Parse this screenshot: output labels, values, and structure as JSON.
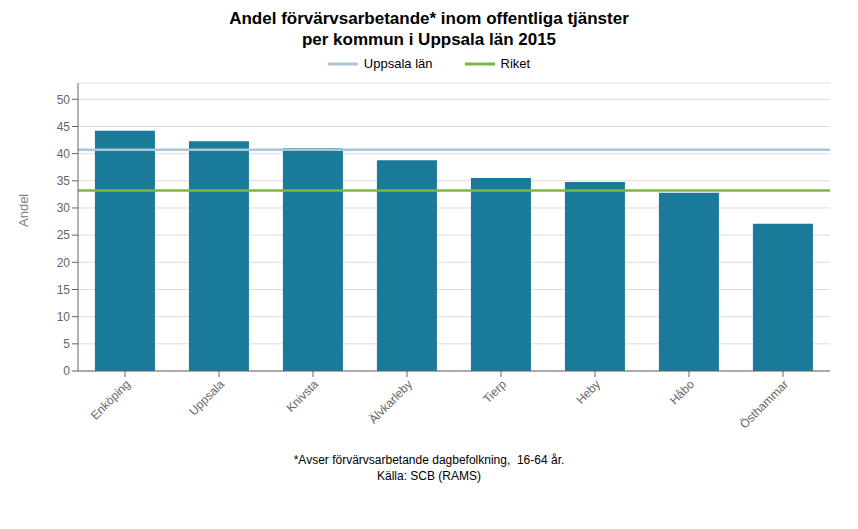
{
  "chart_data": {
    "type": "bar",
    "title": "Andel förvärvsarbetande* inom offentliga tjänster",
    "subtitle": "per kommun i Uppsala län 2015",
    "categories": [
      "Enköping",
      "Uppsala",
      "Knivsta",
      "Älvkarleby",
      "Tierp",
      "Heby",
      "Håbo",
      "Östhammar"
    ],
    "values": [
      44.2,
      42.3,
      41.0,
      38.8,
      35.5,
      34.8,
      32.8,
      27.1
    ],
    "color": "#1a7a9a",
    "reference_lines": [
      {
        "name": "Uppsala län",
        "value": 40.7,
        "color": "#a8c8d8"
      },
      {
        "name": "Riket",
        "value": 33.2,
        "color": "#7ab648"
      }
    ],
    "ylabel": "Andel",
    "ylim": [
      0,
      53
    ],
    "yticks": [
      0,
      5,
      10,
      15,
      20,
      25,
      30,
      35,
      40,
      45,
      50
    ],
    "grid": true,
    "legend": "top",
    "annotations": [
      "*Avser förvärvsarbetande dagbefolkning,  16-64 år.",
      "Källa: SCB (RAMS)"
    ]
  }
}
